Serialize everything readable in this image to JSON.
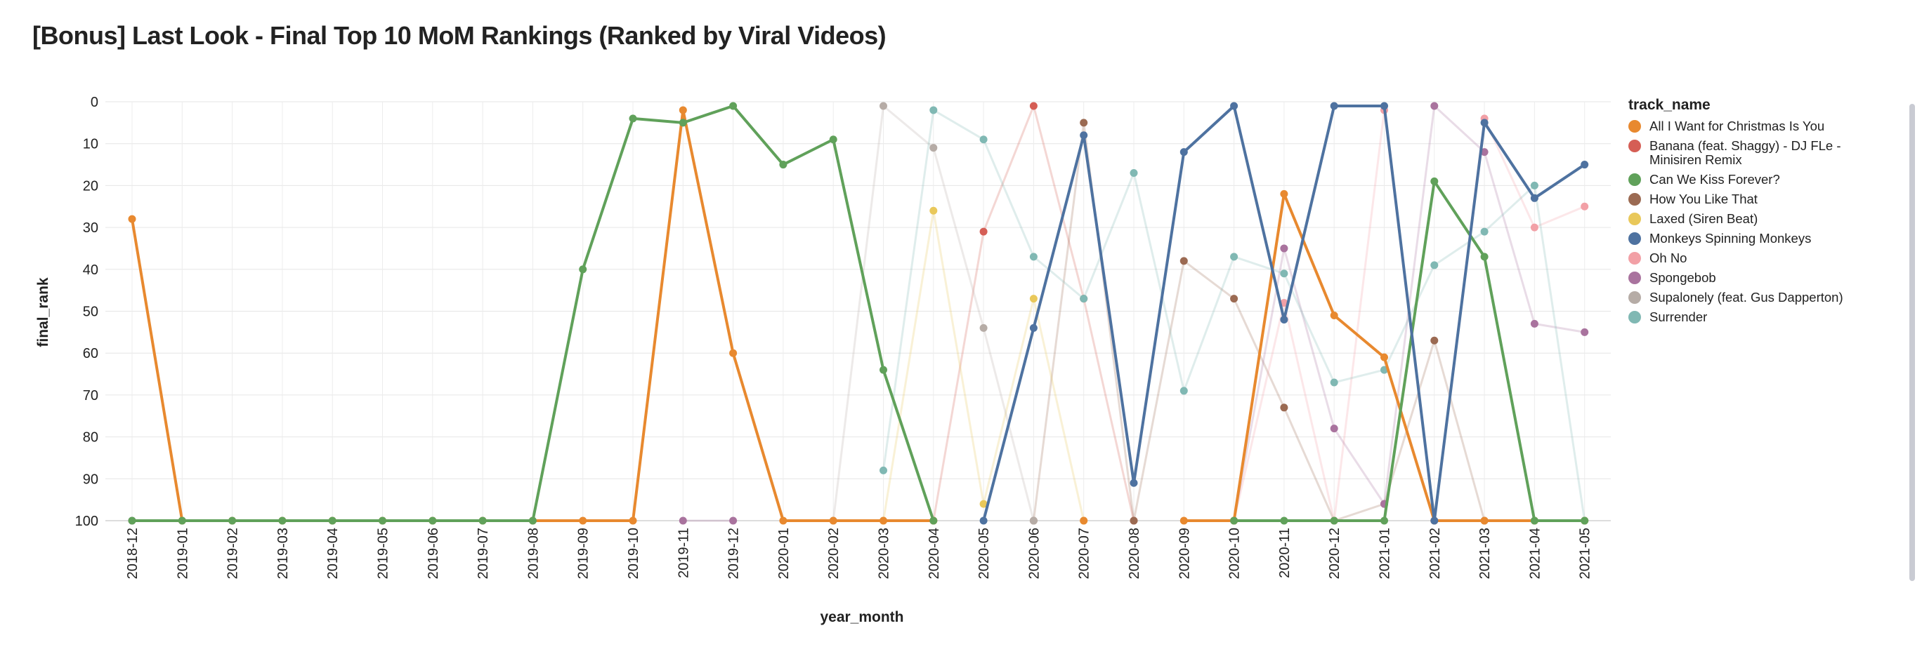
{
  "title": "[Bonus] Last Look - Final Top 10 MoM Rankings (Ranked by Viral Videos)",
  "chart_data": {
    "type": "line",
    "xlabel": "year_month",
    "ylabel": "final_rank",
    "ylim": [
      0,
      100
    ],
    "y_inverted": true,
    "y_ticks": [
      0,
      10,
      20,
      30,
      40,
      50,
      60,
      70,
      80,
      90,
      100
    ],
    "grid": true,
    "legend_title": "track_name",
    "legend_position": "right",
    "categories": [
      "2018-12",
      "2019-01",
      "2019-02",
      "2019-03",
      "2019-04",
      "2019-05",
      "2019-06",
      "2019-07",
      "2019-08",
      "2019-09",
      "2019-10",
      "2019-11",
      "2019-12",
      "2020-01",
      "2020-02",
      "2020-03",
      "2020-04",
      "2020-05",
      "2020-06",
      "2020-07",
      "2020-08",
      "2020-09",
      "2020-10",
      "2020-11",
      "2020-12",
      "2021-01",
      "2021-02",
      "2021-03",
      "2021-04",
      "2021-05"
    ],
    "series": [
      {
        "name": "All I Want for Christmas Is You",
        "color": "#e8892f",
        "highlight": true,
        "values": [
          28,
          100,
          100,
          100,
          100,
          100,
          100,
          100,
          100,
          100,
          100,
          2,
          60,
          100,
          100,
          100,
          100,
          null,
          null,
          100,
          null,
          100,
          100,
          22,
          51,
          61,
          100,
          100,
          100,
          100
        ]
      },
      {
        "name": "Banana (feat. Shaggy) - DJ FLe - Minisiren Remix",
        "color": "#d55e55",
        "highlight": false,
        "values": [
          null,
          null,
          null,
          null,
          null,
          null,
          null,
          null,
          null,
          null,
          null,
          null,
          null,
          null,
          null,
          null,
          100,
          31,
          1,
          47,
          100,
          null,
          null,
          null,
          null,
          null,
          null,
          null,
          null,
          null
        ]
      },
      {
        "name": "Can We Kiss Forever?",
        "color": "#60a15a",
        "highlight": true,
        "values": [
          100,
          100,
          100,
          100,
          100,
          100,
          100,
          100,
          100,
          40,
          4,
          5,
          1,
          15,
          9,
          64,
          100,
          null,
          null,
          null,
          null,
          null,
          100,
          100,
          100,
          100,
          19,
          37,
          100,
          100
        ]
      },
      {
        "name": "How You Like That",
        "color": "#9b6a52",
        "highlight": false,
        "values": [
          null,
          null,
          null,
          null,
          null,
          null,
          null,
          null,
          null,
          null,
          null,
          null,
          null,
          null,
          null,
          null,
          null,
          null,
          100,
          5,
          100,
          38,
          47,
          73,
          100,
          96,
          57,
          100,
          null,
          null
        ]
      },
      {
        "name": "Laxed (Siren Beat)",
        "color": "#e9c85a",
        "highlight": false,
        "values": [
          null,
          null,
          null,
          null,
          null,
          null,
          null,
          null,
          null,
          null,
          null,
          null,
          null,
          null,
          null,
          100,
          26,
          96,
          47,
          100,
          null,
          null,
          null,
          null,
          null,
          null,
          null,
          null,
          null,
          null
        ]
      },
      {
        "name": "Monkeys Spinning Monkeys",
        "color": "#4e72a0",
        "highlight": true,
        "values": [
          null,
          null,
          null,
          null,
          null,
          null,
          null,
          null,
          null,
          null,
          null,
          null,
          null,
          null,
          null,
          null,
          null,
          100,
          54,
          8,
          91,
          12,
          1,
          52,
          1,
          1,
          100,
          5,
          23,
          15
        ]
      },
      {
        "name": "Oh No",
        "color": "#f2a0a6",
        "highlight": false,
        "values": [
          null,
          null,
          null,
          null,
          null,
          null,
          null,
          null,
          null,
          null,
          null,
          null,
          null,
          null,
          null,
          null,
          null,
          null,
          null,
          null,
          null,
          null,
          100,
          48,
          100,
          2,
          100,
          4,
          30,
          25
        ]
      },
      {
        "name": "Spongebob",
        "color": "#a9739e",
        "highlight": false,
        "values": [
          100,
          null,
          null,
          null,
          null,
          null,
          null,
          null,
          null,
          null,
          null,
          100,
          100,
          null,
          null,
          null,
          null,
          null,
          null,
          null,
          null,
          null,
          100,
          35,
          78,
          96,
          1,
          12,
          53,
          55
        ]
      },
      {
        "name": "Supalonely (feat. Gus Dapperton)",
        "color": "#b6aca6",
        "highlight": false,
        "values": [
          null,
          null,
          null,
          null,
          null,
          null,
          null,
          null,
          null,
          null,
          null,
          null,
          null,
          null,
          100,
          1,
          11,
          54,
          100,
          null,
          null,
          null,
          null,
          null,
          null,
          null,
          null,
          null,
          null,
          null
        ]
      },
      {
        "name": "Surrender",
        "color": "#80b8b3",
        "highlight": false,
        "values": [
          null,
          null,
          null,
          null,
          null,
          null,
          null,
          null,
          null,
          null,
          null,
          null,
          null,
          null,
          null,
          88,
          2,
          9,
          37,
          47,
          17,
          69,
          37,
          41,
          67,
          64,
          39,
          31,
          20,
          100
        ]
      }
    ]
  }
}
